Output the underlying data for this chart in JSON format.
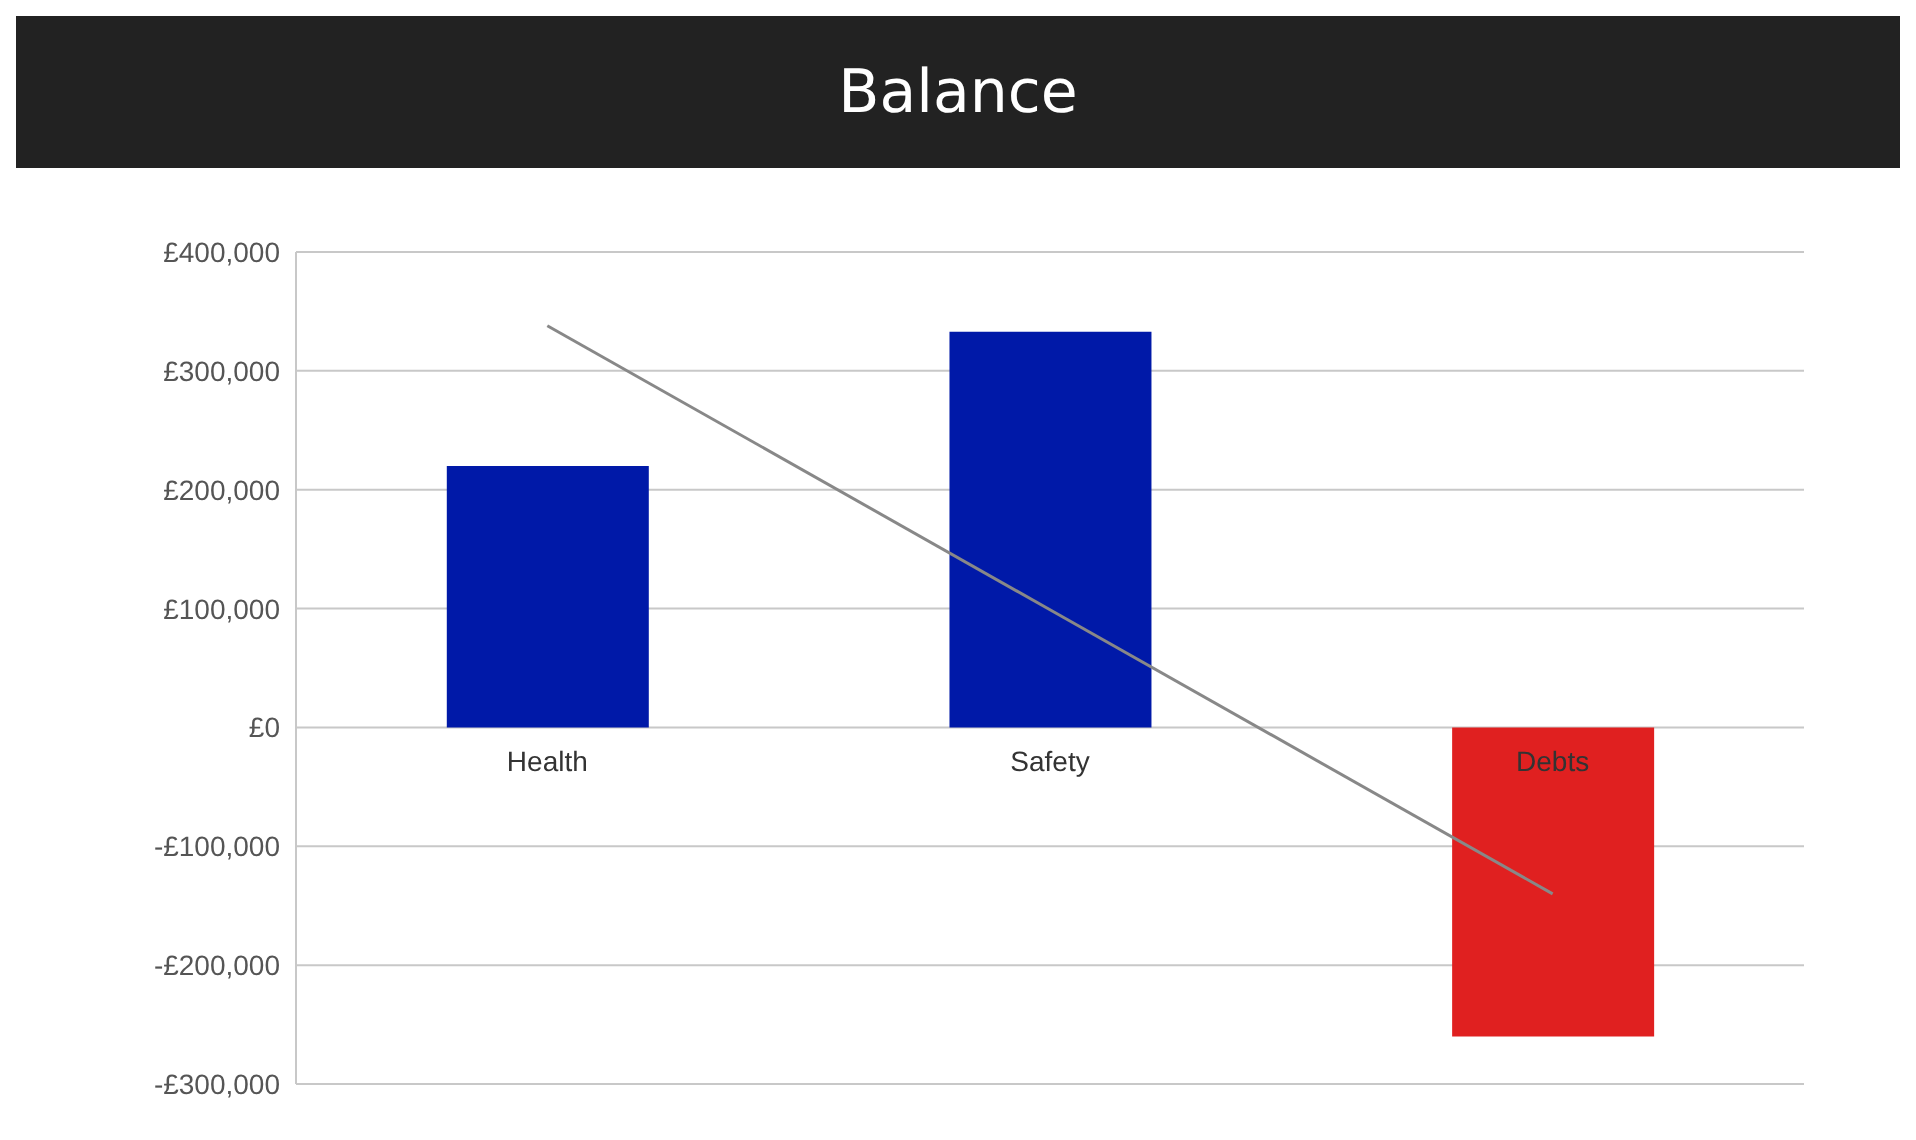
{
  "chart_data": {
    "type": "bar",
    "title": "Balance",
    "categories": [
      "Health",
      "Safety",
      "Debts"
    ],
    "series": [
      {
        "colors": [
          "#0019a8",
          "#0019a8",
          "#e02020"
        ],
        "values": [
          220000,
          333000,
          -260000
        ]
      },
      {
        "type": "line",
        "color": "#888888",
        "values": [
          338000,
          99000,
          -140000
        ]
      }
    ],
    "ylim": [
      -300000,
      400000
    ],
    "yticks": [
      {
        "value": -300000,
        "label": "-£300,000"
      },
      {
        "value": -200000,
        "label": "-£200,000"
      },
      {
        "value": -100000,
        "label": "-£100,000"
      },
      {
        "value": 0,
        "label": "£0"
      },
      {
        "value": 100000,
        "label": "£100,000"
      },
      {
        "value": 200000,
        "label": "£200,000"
      },
      {
        "value": 300000,
        "label": "£300,000"
      },
      {
        "value": 400000,
        "label": "£400,000"
      }
    ],
    "grid": "y",
    "marker": "none",
    "line_style": "solid"
  }
}
